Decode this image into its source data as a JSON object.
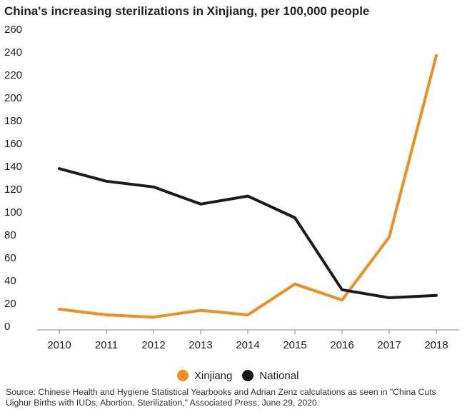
{
  "chart_data": {
    "type": "line",
    "title": "China's increasing sterilizations in Xinjiang, per 100,000 people",
    "xlabel": "",
    "ylabel": "",
    "categories": [
      "2010",
      "2011",
      "2012",
      "2013",
      "2014",
      "2015",
      "2016",
      "2017",
      "2018"
    ],
    "ylim": [
      0,
      260
    ],
    "yticks": [
      "260",
      "240",
      "220",
      "200",
      "180",
      "160",
      "140",
      "120",
      "100",
      "80",
      "60",
      "40",
      "20",
      "0"
    ],
    "grid": false,
    "legend_position": "bottom",
    "series": [
      {
        "name": "Xinjiang",
        "color": "#f28e1c",
        "values": [
          15,
          10,
          8,
          14,
          10,
          37,
          23,
          78,
          237
        ]
      },
      {
        "name": "National",
        "color": "#1a1a1a",
        "values": [
          138,
          127,
          122,
          107,
          114,
          95,
          32,
          25,
          27
        ]
      }
    ],
    "source": "Source: Chinese Health and Hygiene Statistical Yearbooks and Adrian Zenz calculations as seen in \"China Cuts Uighur Births with IUDs, Abortion, Sterilization,\" Associated Press, June 29, 2020."
  }
}
